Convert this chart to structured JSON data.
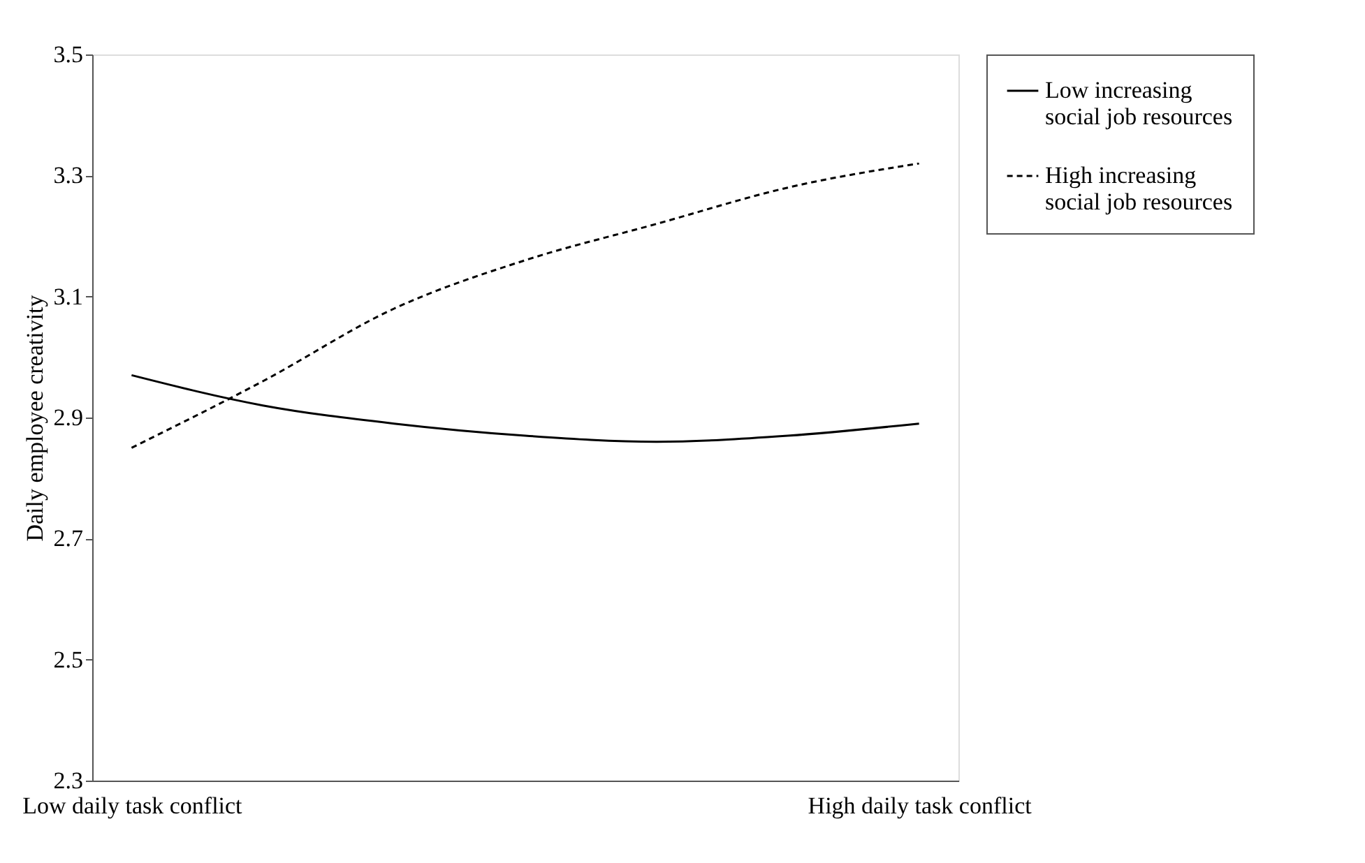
{
  "chart_data": {
    "type": "line",
    "ylabel": "Daily employee creativity",
    "categories": [
      "Low daily task conflict",
      null,
      null,
      null,
      null,
      null,
      "High daily task conflict"
    ],
    "ylim": [
      2.3,
      3.5
    ],
    "yticks": [
      2.3,
      2.5,
      2.7,
      2.9,
      3.1,
      3.3,
      3.5
    ],
    "grid": false,
    "legend": "right",
    "marker": "none",
    "series": [
      {
        "name": "Low increasing social job resources",
        "color": "#000000",
        "line_style": "solid",
        "values": [
          2.97,
          2.92,
          2.89,
          2.87,
          2.86,
          2.87,
          2.89
        ]
      },
      {
        "name": "High increasing social job resources",
        "color": "#000000",
        "line_style": "dashed",
        "values": [
          2.85,
          2.96,
          3.08,
          3.16,
          3.22,
          3.28,
          3.32
        ]
      }
    ]
  }
}
